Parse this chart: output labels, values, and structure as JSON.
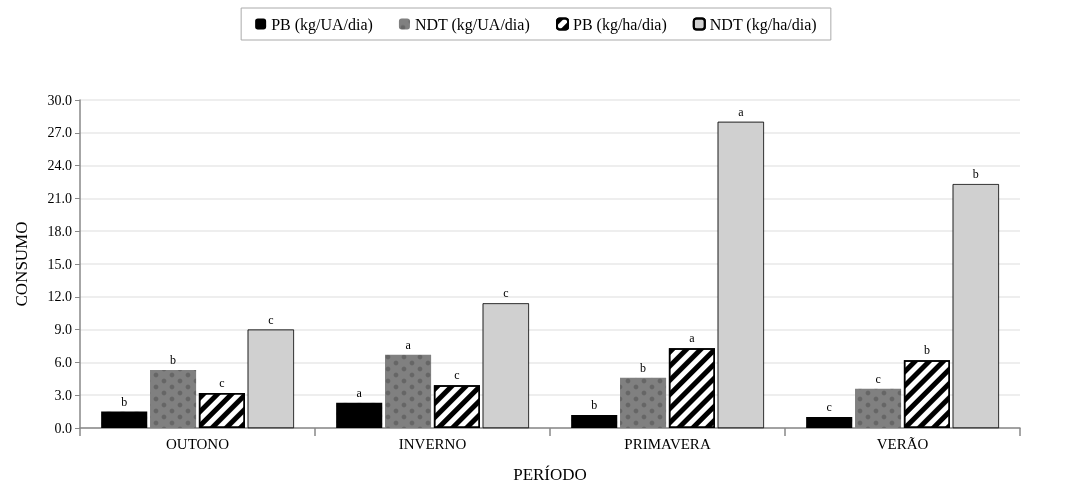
{
  "chart_data": {
    "type": "bar",
    "xlabel": "PERÍODO",
    "ylabel": "CONSUMO",
    "categories": [
      "OUTONO",
      "INVERNO",
      "PRIMAVERA",
      "VERÃO"
    ],
    "series": [
      {
        "name": "PB (kg/UA/dia)",
        "color": "#000000",
        "values": [
          1.5,
          2.3,
          1.2,
          1.0
        ],
        "value_labels": [
          "b",
          "a",
          "b",
          "c"
        ]
      },
      {
        "name": "NDT (kg/UA/dia)",
        "color": "#808080",
        "values": [
          5.3,
          6.7,
          4.6,
          3.6
        ],
        "value_labels": [
          "b",
          "a",
          "b",
          "c"
        ]
      },
      {
        "name": "PB (kg/ha/dia)",
        "color": "#ffffff",
        "values": [
          3.2,
          3.9,
          7.3,
          6.2
        ],
        "value_labels": [
          "c",
          "c",
          "a",
          "b"
        ]
      },
      {
        "name": "NDT (kg/ha/dia)",
        "color": "#d0d0d0",
        "values": [
          9.0,
          11.4,
          28.0,
          22.3
        ],
        "value_labels": [
          "c",
          "c",
          "a",
          "b"
        ]
      }
    ],
    "ylim": [
      0,
      30
    ],
    "yticks": [
      {
        "value": 0,
        "label": "0.0"
      },
      {
        "value": 3,
        "label": "3.0"
      },
      {
        "value": 6,
        "label": "6.0"
      },
      {
        "value": 9,
        "label": "9.0"
      },
      {
        "value": 12,
        "label": "12.0"
      },
      {
        "value": 15,
        "label": "15.0"
      },
      {
        "value": 18,
        "label": "18.0"
      },
      {
        "value": 21,
        "label": "21.0"
      },
      {
        "value": 24,
        "label": "24.0"
      },
      {
        "value": 27,
        "label": "27.0"
      },
      {
        "value": 30,
        "label": "30.0"
      }
    ],
    "grid": "y",
    "legend": "top"
  }
}
